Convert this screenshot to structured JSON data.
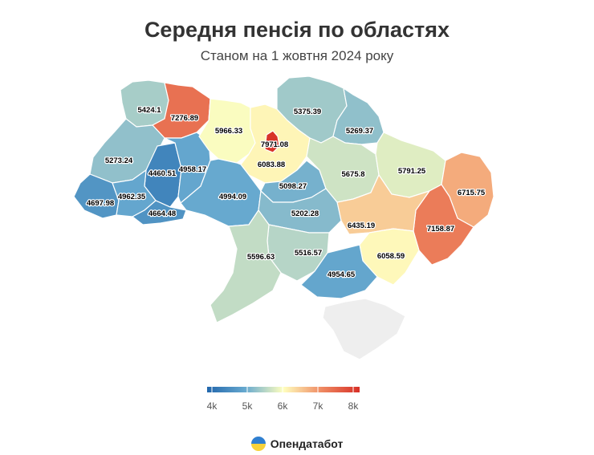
{
  "title": "Середня пенсія по областях",
  "subtitle": "Станом на 1 жовтня 2024 року",
  "legend": {
    "ticks": [
      "4k",
      "5k",
      "6k",
      "7k",
      "8k"
    ],
    "min": 4000,
    "max": 8000
  },
  "brand": {
    "name": "Опендатабот"
  },
  "colors": {
    "low": "#2166ac",
    "mid": "#ffffbf",
    "high": "#d73027",
    "nodata": "#eeeeee"
  },
  "regions": [
    {
      "id": "volyn",
      "value": 5424.1
    },
    {
      "id": "rivne",
      "value": 7276.89
    },
    {
      "id": "lviv",
      "value": 5273.24
    },
    {
      "id": "ternopil",
      "value": 4460.51
    },
    {
      "id": "khmelnytskyi",
      "value": 4958.17
    },
    {
      "id": "zakarpattia",
      "value": 4697.98
    },
    {
      "id": "ivano-frankivsk",
      "value": 4962.35
    },
    {
      "id": "chernivtsi",
      "value": 4664.48
    },
    {
      "id": "zhytomyr",
      "value": 5966.33
    },
    {
      "id": "kyiv-city",
      "value": 7971.08
    },
    {
      "id": "kyiv-oblast",
      "value": 6083.88
    },
    {
      "id": "vinnytsia",
      "value": 4994.09
    },
    {
      "id": "cherkasy",
      "value": 5098.27
    },
    {
      "id": "chernihiv",
      "value": 5375.39
    },
    {
      "id": "sumy",
      "value": 5269.37
    },
    {
      "id": "poltava",
      "value": 5675.8
    },
    {
      "id": "kharkiv",
      "value": 5791.25
    },
    {
      "id": "luhansk",
      "value": 6715.75
    },
    {
      "id": "donetsk",
      "value": 7158.87
    },
    {
      "id": "dnipropetrovsk",
      "value": 6435.19
    },
    {
      "id": "zaporizhzhia",
      "value": 6058.59
    },
    {
      "id": "kirovohrad",
      "value": 5202.28
    },
    {
      "id": "mykolaiv",
      "value": 5516.57
    },
    {
      "id": "odesa",
      "value": 5596.63
    },
    {
      "id": "kherson",
      "value": 4954.65
    },
    {
      "id": "crimea",
      "value": null
    }
  ]
}
